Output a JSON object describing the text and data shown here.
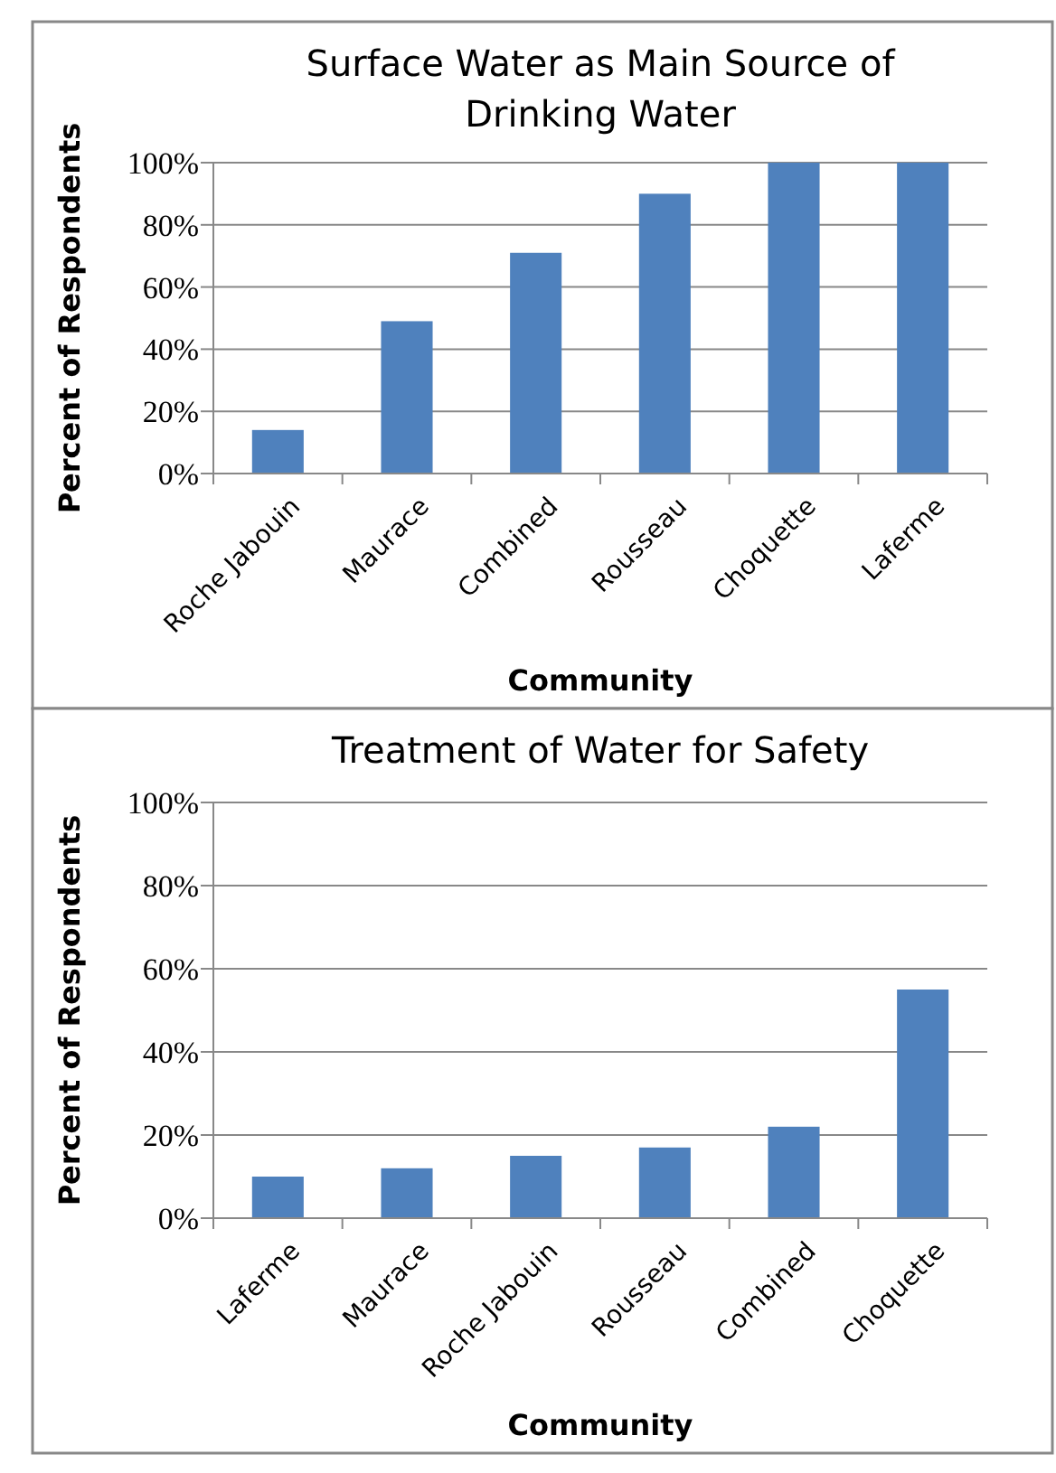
{
  "chart_data": [
    {
      "type": "bar",
      "title": "Surface Water as Main Source of Drinking Water",
      "xlabel": "Community",
      "ylabel": "Percent of Respondents",
      "categories": [
        "Roche Jabouin",
        "Maurace",
        "Combined",
        "Rousseau",
        "Choquette",
        "Laferme"
      ],
      "values": [
        14,
        49,
        71,
        90,
        100,
        100
      ],
      "color": "#4f81bd",
      "ylim": [
        0,
        100
      ],
      "yticks": [
        {
          "value": 0,
          "label": "0%"
        },
        {
          "value": 20,
          "label": "20%"
        },
        {
          "value": 40,
          "label": "40%"
        },
        {
          "value": 60,
          "label": "60%"
        },
        {
          "value": 80,
          "label": "80%"
        },
        {
          "value": 100,
          "label": "100%"
        }
      ],
      "grid": "y"
    },
    {
      "type": "bar",
      "title": "Treatment of Water for Safety",
      "xlabel": "Community",
      "ylabel": "Percent of Respondents",
      "categories": [
        "Laferme",
        "Maurace",
        "Roche Jabouin",
        "Rousseau",
        "Combined",
        "Choquette"
      ],
      "values": [
        10,
        12,
        15,
        17,
        22,
        55
      ],
      "color": "#4f81bd",
      "ylim": [
        0,
        100
      ],
      "yticks": [
        {
          "value": 0,
          "label": "0%"
        },
        {
          "value": 20,
          "label": "20%"
        },
        {
          "value": 40,
          "label": "40%"
        },
        {
          "value": 60,
          "label": "60%"
        },
        {
          "value": 80,
          "label": "80%"
        },
        {
          "value": 100,
          "label": "100%"
        }
      ],
      "grid": "y"
    }
  ]
}
